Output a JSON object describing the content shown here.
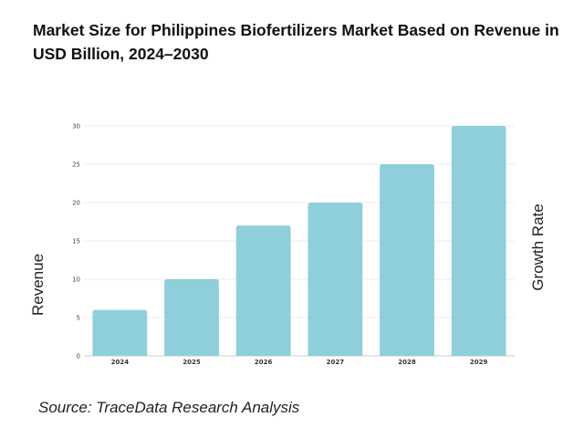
{
  "page": {
    "title": "Market Size for Philippines Biofertilizers Market Based on Revenue in USD Billion, 2024–2030",
    "source": "Source: TraceData Research Analysis"
  },
  "chart_data": {
    "type": "bar",
    "title": "Market Size for Philippines Biofertilizers Market Based on Revenue in USD Billion, 2024–2030",
    "xlabel": "",
    "ylabel": "Revenue",
    "ylabel_right": "Growth Rate",
    "categories": [
      "2024",
      "2025",
      "2026",
      "2027",
      "2028",
      "2029"
    ],
    "values": [
      6,
      10,
      17,
      20,
      25,
      30
    ],
    "ylim": [
      0,
      30
    ],
    "yticks": [
      0,
      5,
      10,
      15,
      20,
      25,
      30
    ],
    "bar_color": "#8ecfdb",
    "grid": true,
    "legend": "none"
  }
}
